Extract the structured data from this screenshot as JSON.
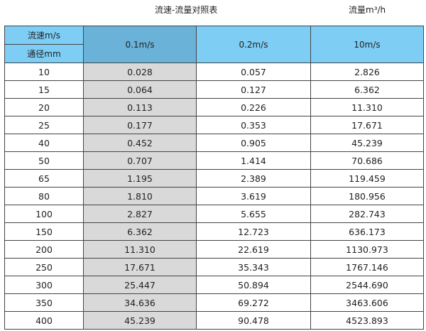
{
  "title": "流速-流量对照表",
  "unit_label": "流量m³/h",
  "header": {
    "velocity_label": "流速m/s",
    "diameter_label": "通径mm",
    "columns": [
      "0.1m/s",
      "0.2m/s",
      "10m/s"
    ]
  },
  "colors": {
    "header": "#7dcdf5",
    "header_highlight": "#6ab2d8",
    "highlight_column": "#d9d9d9"
  },
  "rows": [
    [
      "10",
      "0.028",
      "0.057",
      "2.826"
    ],
    [
      "15",
      "0.064",
      "0.127",
      "6.362"
    ],
    [
      "20",
      "0.113",
      "0.226",
      "11.310"
    ],
    [
      "25",
      "0.177",
      "0.353",
      "17.671"
    ],
    [
      "40",
      "0.452",
      "0.905",
      "45.239"
    ],
    [
      "50",
      "0.707",
      "1.414",
      "70.686"
    ],
    [
      "65",
      "1.195",
      "2.389",
      "119.459"
    ],
    [
      "80",
      "1.810",
      "3.619",
      "180.956"
    ],
    [
      "100",
      "2.827",
      "5.655",
      "282.743"
    ],
    [
      "150",
      "6.362",
      "12.723",
      "636.173"
    ],
    [
      "200",
      "11.310",
      "22.619",
      "1130.973"
    ],
    [
      "250",
      "17.671",
      "35.343",
      "1767.146"
    ],
    [
      "300",
      "25.447",
      "50.894",
      "2544.690"
    ],
    [
      "350",
      "34.636",
      "69.272",
      "3463.606"
    ],
    [
      "400",
      "45.239",
      "90.478",
      "4523.893"
    ]
  ]
}
